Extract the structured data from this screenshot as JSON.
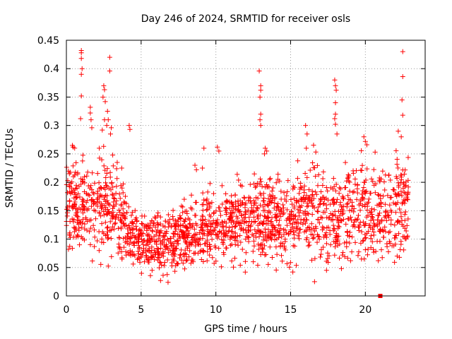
{
  "chart_data": {
    "type": "scatter",
    "title": "Day 246 of 2024, SRMTID for receiver osls",
    "xlabel": "GPS time / hours",
    "ylabel": "SRMTID / TECUs",
    "xlim": [
      0,
      24
    ],
    "ylim": [
      0,
      0.45
    ],
    "xticks": [
      0,
      5,
      10,
      15,
      20
    ],
    "xtick_labels": [
      "0",
      "5",
      "10",
      "15",
      "20"
    ],
    "yticks": [
      0,
      0.05,
      0.1,
      0.15,
      0.2,
      0.25,
      0.3,
      0.35,
      0.4,
      0.45
    ],
    "ytick_labels": [
      "0",
      "0.05",
      "0.1",
      "0.15",
      "0.2",
      "0.25",
      "0.3",
      "0.35",
      "0.4",
      "0.45"
    ],
    "grid": true,
    "marker": "plus",
    "color": "#ff0000",
    "band": {
      "x": [
        0,
        0.5,
        1,
        1.5,
        2,
        2.5,
        3,
        3.5,
        4,
        4.5,
        5,
        5.5,
        6,
        6.5,
        7,
        7.5,
        8,
        8.5,
        9,
        9.5,
        10,
        10.5,
        11,
        11.5,
        12,
        12.5,
        13,
        13.5,
        14,
        14.5,
        15,
        15.5,
        16,
        16.5,
        17,
        17.5,
        18,
        18.5,
        19,
        19.5,
        20,
        20.5,
        21,
        21.5,
        22,
        22.5,
        22.9
      ],
      "median": [
        0.165,
        0.16,
        0.15,
        0.145,
        0.14,
        0.155,
        0.16,
        0.135,
        0.115,
        0.105,
        0.1,
        0.095,
        0.09,
        0.09,
        0.095,
        0.1,
        0.105,
        0.11,
        0.115,
        0.12,
        0.12,
        0.125,
        0.125,
        0.13,
        0.13,
        0.135,
        0.14,
        0.14,
        0.135,
        0.13,
        0.13,
        0.14,
        0.15,
        0.155,
        0.15,
        0.145,
        0.14,
        0.15,
        0.155,
        0.15,
        0.155,
        0.15,
        0.145,
        0.15,
        0.155,
        0.16,
        0.165
      ],
      "spread": [
        0.05,
        0.05,
        0.045,
        0.045,
        0.045,
        0.055,
        0.05,
        0.045,
        0.035,
        0.03,
        0.03,
        0.03,
        0.03,
        0.03,
        0.03,
        0.03,
        0.03,
        0.035,
        0.035,
        0.035,
        0.035,
        0.035,
        0.035,
        0.04,
        0.04,
        0.04,
        0.045,
        0.045,
        0.04,
        0.04,
        0.04,
        0.045,
        0.05,
        0.05,
        0.05,
        0.05,
        0.05,
        0.05,
        0.05,
        0.05,
        0.05,
        0.05,
        0.05,
        0.05,
        0.05,
        0.05,
        0.05
      ],
      "count": 1900,
      "x_max": 22.9
    },
    "outliers": [
      [
        1.0,
        0.432
      ],
      [
        1.0,
        0.428
      ],
      [
        1.0,
        0.418
      ],
      [
        1.05,
        0.4
      ],
      [
        1.0,
        0.39
      ],
      [
        1.0,
        0.352
      ],
      [
        0.95,
        0.312
      ],
      [
        0.4,
        0.265
      ],
      [
        0.45,
        0.262
      ],
      [
        1.6,
        0.332
      ],
      [
        1.6,
        0.322
      ],
      [
        1.65,
        0.31
      ],
      [
        1.7,
        0.296
      ],
      [
        2.5,
        0.37
      ],
      [
        2.55,
        0.363
      ],
      [
        2.45,
        0.35
      ],
      [
        2.6,
        0.342
      ],
      [
        2.55,
        0.31
      ],
      [
        2.4,
        0.292
      ],
      [
        2.7,
        0.3
      ],
      [
        2.9,
        0.42
      ],
      [
        2.9,
        0.396
      ],
      [
        2.75,
        0.325
      ],
      [
        2.8,
        0.31
      ],
      [
        3.0,
        0.296
      ],
      [
        2.95,
        0.285
      ],
      [
        4.2,
        0.3
      ],
      [
        4.25,
        0.293
      ],
      [
        8.6,
        0.23
      ],
      [
        8.7,
        0.222
      ],
      [
        9.1,
        0.225
      ],
      [
        9.2,
        0.26
      ],
      [
        10.1,
        0.262
      ],
      [
        10.2,
        0.255
      ],
      [
        12.9,
        0.396
      ],
      [
        13.0,
        0.37
      ],
      [
        13.0,
        0.362
      ],
      [
        12.95,
        0.35
      ],
      [
        13.0,
        0.32
      ],
      [
        12.95,
        0.31
      ],
      [
        13.0,
        0.3
      ],
      [
        13.3,
        0.26
      ],
      [
        13.25,
        0.25
      ],
      [
        13.4,
        0.255
      ],
      [
        16.0,
        0.3
      ],
      [
        16.1,
        0.285
      ],
      [
        16.05,
        0.26
      ],
      [
        17.95,
        0.38
      ],
      [
        18.0,
        0.37
      ],
      [
        18.05,
        0.362
      ],
      [
        18.0,
        0.34
      ],
      [
        18.0,
        0.32
      ],
      [
        17.95,
        0.312
      ],
      [
        18.0,
        0.302
      ],
      [
        18.1,
        0.285
      ],
      [
        19.9,
        0.28
      ],
      [
        20.0,
        0.272
      ],
      [
        20.1,
        0.266
      ],
      [
        22.5,
        0.43
      ],
      [
        22.5,
        0.386
      ],
      [
        22.45,
        0.345
      ],
      [
        22.5,
        0.318
      ],
      [
        22.4,
        0.28
      ],
      [
        22.2,
        0.29
      ],
      [
        16.6,
        0.025
      ],
      [
        6.3,
        0.027
      ],
      [
        6.8,
        0.024
      ],
      [
        18.4,
        0.048
      ],
      [
        17.4,
        0.045
      ],
      [
        0.2,
        0.215
      ],
      [
        0.3,
        0.198
      ],
      [
        2.2,
        0.26
      ],
      [
        3.1,
        0.248
      ],
      [
        3.4,
        0.235
      ],
      [
        3.7,
        0.225
      ]
    ],
    "special_points": [
      {
        "x": 21.0,
        "y": 0.0,
        "marker": "filled-square"
      }
    ]
  }
}
